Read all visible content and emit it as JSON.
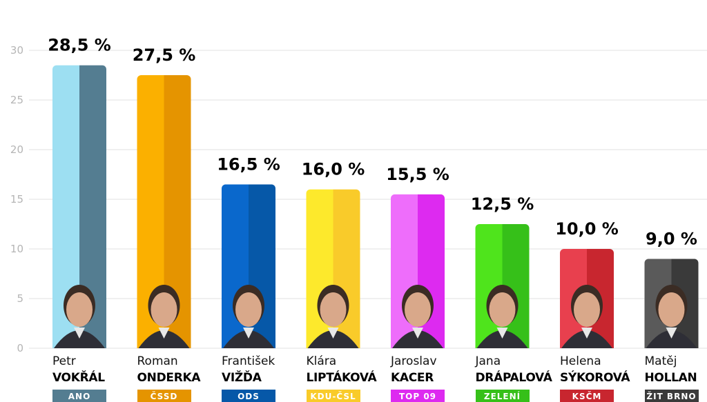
{
  "chart_data": {
    "type": "bar",
    "y_ticks": [
      "0",
      "5",
      "10",
      "15",
      "20",
      "25",
      "30"
    ],
    "ylim": [
      0,
      30
    ],
    "grid": true,
    "bars": [
      {
        "value": 28.5,
        "label": "28,5 %",
        "first_name": "Petr",
        "last_name": "VOKŘÁL",
        "party": "ANO",
        "color_light": "#9ddff2",
        "color_dark": "#547d91"
      },
      {
        "value": 27.5,
        "label": "27,5 %",
        "first_name": "Roman",
        "last_name": "ONDERKA",
        "party": "ČSSD",
        "color_light": "#fbb000",
        "color_dark": "#e59400"
      },
      {
        "value": 16.5,
        "label": "16,5 %",
        "first_name": "František",
        "last_name": "VIŽĎA",
        "party": "ODS",
        "color_light": "#0a68cc",
        "color_dark": "#0658a8"
      },
      {
        "value": 16.0,
        "label": "16,0 %",
        "first_name": "Klára",
        "last_name": "LIPTÁKOVÁ",
        "party": "KDU-ČSL",
        "color_light": "#fde92c",
        "color_dark": "#f9cb2a"
      },
      {
        "value": 15.5,
        "label": "15,5 %",
        "first_name": "Jaroslav",
        "last_name": "KACER",
        "party": "TOP 09",
        "color_light": "#ee6dfb",
        "color_dark": "#dd2af0"
      },
      {
        "value": 12.5,
        "label": "12,5 %",
        "first_name": "Jana",
        "last_name": "DRÁPALOVÁ",
        "party": "ZELENÍ",
        "color_light": "#4fe41c",
        "color_dark": "#36c019"
      },
      {
        "value": 10.0,
        "label": "10,0 %",
        "first_name": "Helena",
        "last_name": "SÝKOROVÁ",
        "party": "KSČM",
        "color_light": "#e8404e",
        "color_dark": "#c8262f"
      },
      {
        "value": 9.0,
        "label": "9,0 %",
        "first_name": "Matěj",
        "last_name": "HOLLAN",
        "party": "ŽIT BRNO",
        "color_light": "#5a5a5a",
        "color_dark": "#3a3a3a"
      }
    ]
  }
}
